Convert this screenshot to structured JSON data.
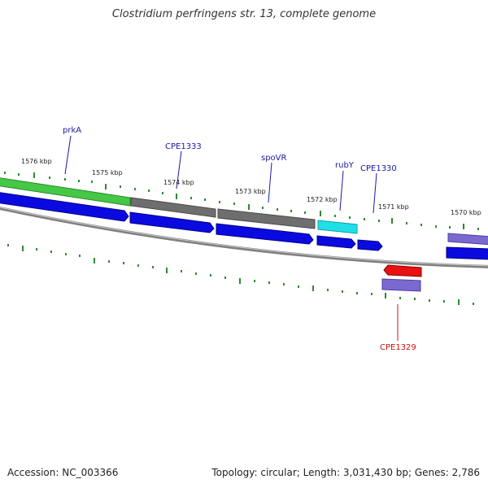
{
  "title": "Clostridium perfringens str. 13, complete genome",
  "accession": "Accession: NC_003366",
  "summary": "Topology: circular; Length: 3,031,430 bp; Genes: 2,786",
  "colors": {
    "backbone": "#808080",
    "tick": "#2f8a2f",
    "cds_forward": "#0a0ae0",
    "cds_reverse": "#e81010",
    "gene_green": "#45c845",
    "gene_gray": "#6e6e6e",
    "gene_cyan": "#1fe0e8",
    "gene_purple": "#7a6ad0",
    "label_blue": "#1a1aa6",
    "label_red": "#cc1111"
  },
  "scale_labels": [
    {
      "text": "1576 kbp"
    },
    {
      "text": "1575 kbp"
    },
    {
      "text": "1574 kbp"
    },
    {
      "text": "1573 kbp"
    },
    {
      "text": "1572 kbp"
    },
    {
      "text": "1571 kbp"
    },
    {
      "text": "1570 kbp"
    }
  ],
  "gene_labels": [
    {
      "name": "prkA",
      "strand": "forward"
    },
    {
      "name": "CPE1333",
      "strand": "forward"
    },
    {
      "name": "spoVR",
      "strand": "forward"
    },
    {
      "name": "rubY",
      "strand": "forward"
    },
    {
      "name": "CPE1330",
      "strand": "forward"
    },
    {
      "name": "CPE1329",
      "strand": "reverse"
    }
  ]
}
